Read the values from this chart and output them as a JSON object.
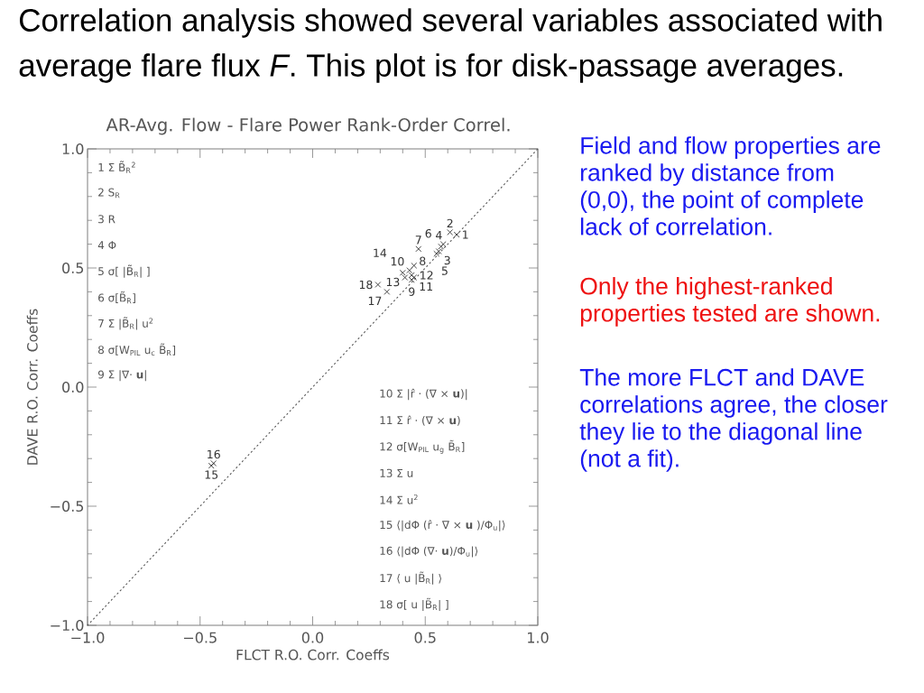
{
  "chart_data": {
    "type": "scatter",
    "title": "Correlation analysis showed several variables associated with average flare flux *F*.  This plot is for disk-passage averages.",
    "subtitle": "AR-Avg. Flow - Flare Power Rank-Order Correl.",
    "xlabel": "FLCT R.O. Corr. Coeffs",
    "ylabel": "DAVE R.O. Corr. Coeffs",
    "xlim": [
      -1,
      1
    ],
    "ylim": [
      -1,
      1
    ],
    "xticks": [
      {
        "value": -1,
        "label": "−1.0"
      },
      {
        "value": -0.5,
        "label": "−0.5"
      },
      {
        "value": 0,
        "label": "0.0"
      },
      {
        "value": 0.5,
        "label": "0.5"
      },
      {
        "value": 1,
        "label": "1.0"
      }
    ],
    "yticks": [
      {
        "value": -1,
        "label": "−1.0"
      },
      {
        "value": -0.5,
        "label": "−0.5"
      },
      {
        "value": 0,
        "label": "0.0"
      },
      {
        "value": 0.5,
        "label": "0.5"
      },
      {
        "value": 1,
        "label": "1.0"
      }
    ],
    "marker": "cross",
    "series": [
      {
        "name": "1",
        "color": "#333333",
        "x": [
          0.64
        ],
        "values": [
          0.64
        ]
      },
      {
        "name": "2",
        "color": "#333333",
        "x": [
          0.61
        ],
        "values": [
          0.65
        ]
      },
      {
        "name": "3",
        "color": "#333333",
        "x": [
          0.56
        ],
        "values": [
          0.57
        ]
      },
      {
        "name": "4",
        "color": "#333333",
        "x": [
          0.58
        ],
        "values": [
          0.6
        ]
      },
      {
        "name": "5",
        "color": "#333333",
        "x": [
          0.55
        ],
        "values": [
          0.56
        ]
      },
      {
        "name": "6",
        "color": "#333333",
        "x": [
          0.57
        ],
        "values": [
          0.59
        ]
      },
      {
        "name": "7",
        "color": "#333333",
        "x": [
          0.47
        ],
        "values": [
          0.58
        ]
      },
      {
        "name": "8",
        "color": "#333333",
        "x": [
          0.45
        ],
        "values": [
          0.51
        ]
      },
      {
        "name": "9",
        "color": "#333333",
        "x": [
          0.44
        ],
        "values": [
          0.45
        ]
      },
      {
        "name": "10",
        "color": "#333333",
        "x": [
          0.43
        ],
        "values": [
          0.49
        ]
      },
      {
        "name": "11",
        "color": "#333333",
        "x": [
          0.45
        ],
        "values": [
          0.46
        ]
      },
      {
        "name": "12",
        "color": "#333333",
        "x": [
          0.44
        ],
        "values": [
          0.47
        ]
      },
      {
        "name": "13",
        "color": "#333333",
        "x": [
          0.41
        ],
        "values": [
          0.46
        ]
      },
      {
        "name": "14",
        "color": "#333333",
        "x": [
          0.4
        ],
        "values": [
          0.48
        ]
      },
      {
        "name": "15",
        "color": "#333333",
        "x": [
          -0.45
        ],
        "values": [
          -0.33
        ]
      },
      {
        "name": "16",
        "color": "#333333",
        "x": [
          -0.44
        ],
        "values": [
          -0.32
        ]
      },
      {
        "name": "17",
        "color": "#333333",
        "x": [
          0.33
        ],
        "values": [
          0.4
        ]
      },
      {
        "name": "18",
        "color": "#333333",
        "x": [
          0.29
        ],
        "values": [
          0.43
        ]
      },
      {
        "type": "line",
        "color": "#555555",
        "line_style": "dotted",
        "marker": "none",
        "x": [
          -1,
          1
        ],
        "values": [
          -1,
          1
        ]
      }
    ],
    "annotations": [
      "1 Σ B̃$_{R}$$^{2}$",
      "2 S$_{R}$",
      "3 R",
      "4 Φ",
      "5 σ[ |B̃$_{R}$| ]",
      "6 σ[B̃$_{R}$]",
      "7 Σ |B̃$_{R}$| u$^{2}$",
      "8 σ[W$_{PIL}$ u$_{c}$ B̃$_{R}$]",
      "9 Σ |∇· **u**|",
      "10 Σ |r̂ · (∇ × **u**)|",
      "11 Σ r̂ · (∇ × **u**)",
      "12 σ[W$_{PIL}$ u$_{g}$ B̃$_{R}$]",
      "13 Σ u",
      "14 Σ u$^{2}$",
      "15 ⟨|dΦ (r̂ · ∇ × **u** )/Φ$_{u}$|⟩",
      "16 ⟨|dΦ (∇· **u**)/Φ$_{u}$|⟩",
      "17 ⟨ u |B̃$_{R}$| ⟩",
      "18 σ[ u |B̃$_{R}$| ]",
      "Field and flow properties are ranked by distance from (0,0), the point of complete lack of correlation.",
      "Only the highest-ranked properties tested are shown.",
      "The more FLCT and DAVE correlations agree, the closer they lie to the diagonal line (not a fit)."
    ]
  }
}
